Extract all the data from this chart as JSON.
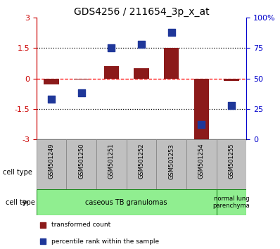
{
  "title": "GDS4256 / 211654_3p_x_at",
  "samples": [
    "GSM501249",
    "GSM501250",
    "GSM501251",
    "GSM501252",
    "GSM501253",
    "GSM501254",
    "GSM501255"
  ],
  "transformed_count": [
    -0.28,
    -0.05,
    0.6,
    0.5,
    1.5,
    -3.05,
    -0.13
  ],
  "percentile_rank": [
    33,
    38,
    75,
    78,
    88,
    12,
    28
  ],
  "ylim_left": [
    -3,
    3
  ],
  "ylim_right": [
    0,
    100
  ],
  "yticks_left": [
    -3,
    -1.5,
    0,
    1.5,
    3
  ],
  "ytick_labels_left": [
    "-3",
    "-1.5",
    "0",
    "1.5",
    "3"
  ],
  "yticks_right": [
    0,
    25,
    50,
    75,
    100
  ],
  "ytick_labels_right": [
    "0",
    "25",
    "50",
    "75",
    "100%"
  ],
  "hlines": [
    1.5,
    0.0,
    -1.5
  ],
  "hlines_styles": [
    "dotted",
    "dashed",
    "dotted"
  ],
  "hlines_colors": [
    "black",
    "red",
    "black"
  ],
  "bar_color": "#8B1A1A",
  "dot_color": "#1F3799",
  "bar_width": 0.5,
  "dot_size": 55,
  "cell_type_groups": [
    {
      "label": "caseous TB granulomas",
      "n_samples": 6,
      "color": "#90EE90"
    },
    {
      "label": "normal lung\nparenchyma",
      "n_samples": 1,
      "color": "#90EE90"
    }
  ],
  "title_fontsize": 10,
  "tick_fontsize": 8,
  "left_axis_color": "#CC0000",
  "right_axis_color": "#0000CC",
  "sample_box_color": "#C0C0C0",
  "sample_box_edge": "#888888",
  "cell_type_label": "cell type",
  "legend_bar_label": "transformed count",
  "legend_dot_label": "percentile rank within the sample"
}
